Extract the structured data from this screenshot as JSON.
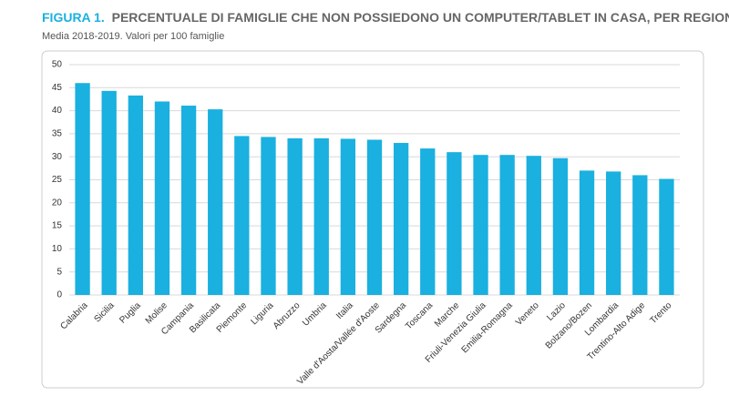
{
  "chart_data": {
    "type": "bar",
    "figure_label": "FIGURA 1.",
    "title": "PERCENTUALE DI FAMIGLIE CHE NON POSSIEDONO UN COMPUTER/TABLET IN CASA, PER REGIONE.",
    "subtitle": "Media 2018-2019. Valori per 100 famiglie",
    "categories": [
      "Calabria",
      "Sicilia",
      "Puglia",
      "Molise",
      "Campania",
      "Basilicata",
      "Piemonte",
      "Liguria",
      "Abruzzo",
      "Umbria",
      "Italia",
      "Valle d'Aosta/Vallée d'Aoste",
      "Sardegna",
      "Toscana",
      "Marche",
      "Friuli-Venezia Giulia",
      "Emilia-Romagna",
      "Veneto",
      "Lazio",
      "Bolzano/Bozen",
      "Lombardia",
      "Trentino-Alto Adige",
      "Trento"
    ],
    "values": [
      46,
      44.3,
      43.3,
      42,
      41.1,
      40.3,
      34.5,
      34.3,
      34,
      34,
      33.9,
      33.7,
      33,
      31.8,
      31,
      30.4,
      30.4,
      30.2,
      29.7,
      27,
      26.8,
      26,
      25.2
    ],
    "color": "#1ab0e0",
    "ylim": [
      0,
      50
    ],
    "yticks": [
      0,
      5,
      10,
      15,
      20,
      25,
      30,
      35,
      40,
      45,
      50
    ],
    "grid": true
  }
}
